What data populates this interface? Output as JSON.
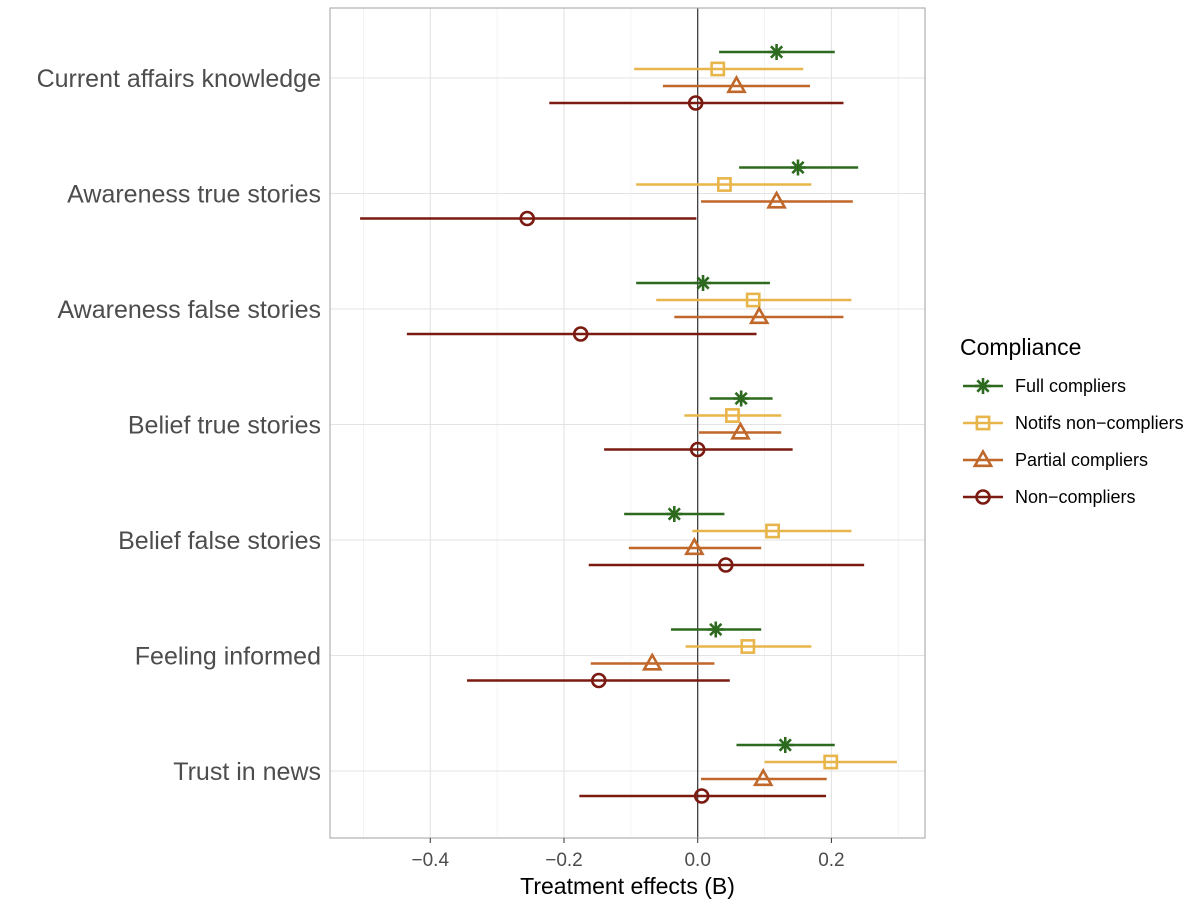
{
  "chart_data": {
    "type": "forest",
    "title": "",
    "xlabel": "Treatment effects (B)",
    "ylabel": "",
    "xlim": [
      -0.55,
      0.34
    ],
    "x_ticks": [
      -0.4,
      -0.2,
      0.0,
      0.2
    ],
    "x_tick_labels": [
      "−0.4",
      "−0.2",
      "0.0",
      "0.2"
    ],
    "categories": [
      "Current affairs knowledge",
      "Awareness true stories",
      "Awareness false stories",
      "Belief true stories",
      "Belief false stories",
      "Feeling informed",
      "Trust in news"
    ],
    "reference_line": 0,
    "legend": {
      "title": "Compliance",
      "position": "right"
    },
    "series": [
      {
        "name": "Full compliers",
        "color": "#2d6a1f",
        "shape": "asterisk",
        "estimates": [
          0.118,
          0.15,
          0.008,
          0.065,
          -0.035,
          0.027,
          0.131
        ],
        "ci_low": [
          0.032,
          0.062,
          -0.092,
          0.018,
          -0.11,
          -0.04,
          0.058
        ],
        "ci_high": [
          0.205,
          0.24,
          0.108,
          0.112,
          0.04,
          0.095,
          0.205
        ]
      },
      {
        "name": "Notifs non−compliers",
        "color": "#e8b54a",
        "shape": "square",
        "estimates": [
          0.03,
          0.04,
          0.083,
          0.052,
          0.112,
          0.075,
          0.199
        ],
        "ci_low": [
          -0.095,
          -0.092,
          -0.062,
          -0.02,
          -0.008,
          -0.018,
          0.1
        ],
        "ci_high": [
          0.158,
          0.17,
          0.23,
          0.125,
          0.23,
          0.17,
          0.298
        ]
      },
      {
        "name": "Partial compliers",
        "color": "#c0672a",
        "shape": "triangle",
        "estimates": [
          0.058,
          0.118,
          0.092,
          0.064,
          -0.005,
          -0.068,
          0.098
        ],
        "ci_low": [
          -0.052,
          0.005,
          -0.035,
          0.002,
          -0.103,
          -0.16,
          0.005
        ],
        "ci_high": [
          0.168,
          0.232,
          0.218,
          0.125,
          0.095,
          0.025,
          0.193
        ]
      },
      {
        "name": "Non−compliers",
        "color": "#7a1a10",
        "shape": "circle",
        "estimates": [
          -0.003,
          -0.255,
          -0.175,
          0.0,
          0.042,
          -0.148,
          0.006
        ],
        "ci_low": [
          -0.222,
          -0.505,
          -0.435,
          -0.14,
          -0.163,
          -0.345,
          -0.177
        ],
        "ci_high": [
          0.218,
          -0.002,
          0.088,
          0.142,
          0.249,
          0.048,
          0.192
        ]
      }
    ]
  }
}
